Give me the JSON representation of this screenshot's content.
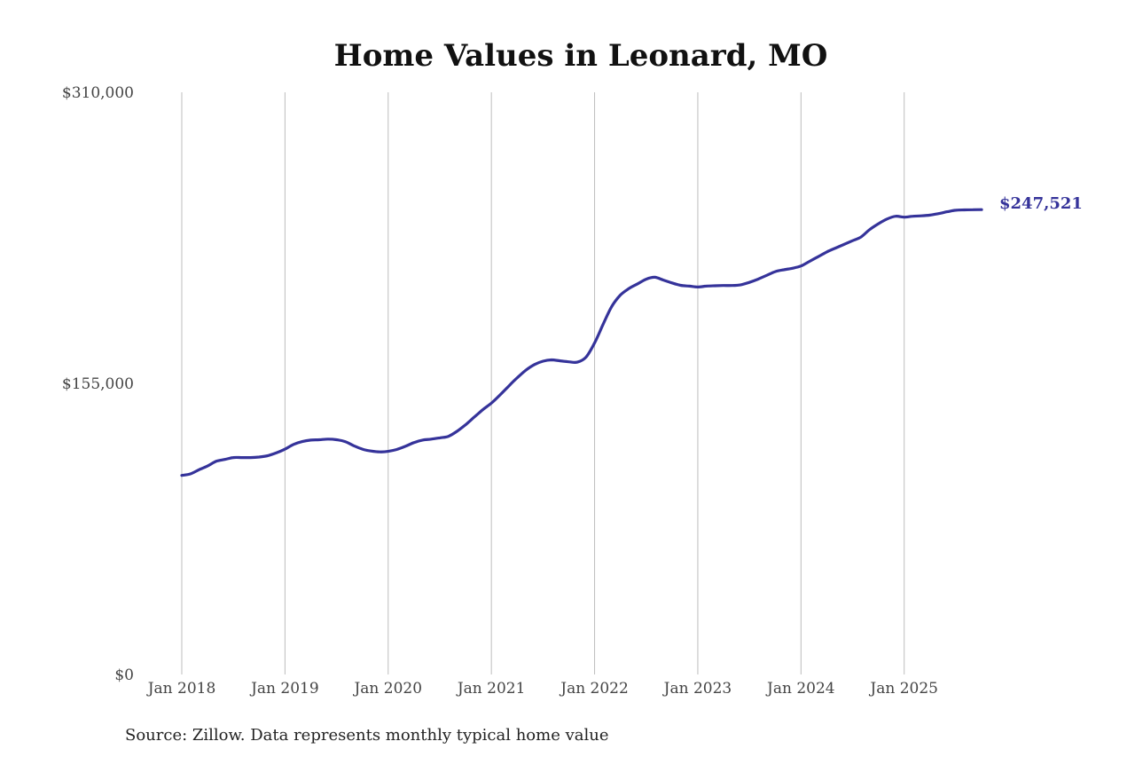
{
  "chart_data": {
    "type": "line",
    "title": "Home Values in Leonard, MO",
    "xlabel": "",
    "ylabel": "",
    "source": "Source: Zillow. Data represents monthly typical home value",
    "ylim": [
      0,
      310000
    ],
    "yticks": [
      0,
      155000,
      310000
    ],
    "ytick_labels": [
      "$0",
      "$155,000",
      "$310,000"
    ],
    "xlim": [
      2018.0,
      2025.75
    ],
    "xticks": [
      2018,
      2019,
      2020,
      2021,
      2022,
      2023,
      2024,
      2025
    ],
    "xtick_labels": [
      "Jan 2018",
      "Jan 2019",
      "Jan 2020",
      "Jan 2021",
      "Jan 2022",
      "Jan 2023",
      "Jan 2024",
      "Jan 2025"
    ],
    "grid": "vertical",
    "colors": {
      "line": "#35339a"
    },
    "end_label": "$247,521",
    "series": [
      {
        "x": [
          2018.0,
          2018.083,
          2018.167,
          2018.25,
          2018.333,
          2018.417,
          2018.5,
          2018.583,
          2018.667,
          2018.75,
          2018.833,
          2018.917,
          2019.0,
          2019.083,
          2019.167,
          2019.25,
          2019.333,
          2019.417,
          2019.5,
          2019.583,
          2019.667,
          2019.75,
          2019.833,
          2019.917,
          2020.0,
          2020.083,
          2020.167,
          2020.25,
          2020.333,
          2020.417,
          2020.5,
          2020.583,
          2020.667,
          2020.75,
          2020.833,
          2020.917,
          2021.0,
          2021.083,
          2021.167,
          2021.25,
          2021.333,
          2021.417,
          2021.5,
          2021.583,
          2021.667,
          2021.75,
          2021.833,
          2021.917,
          2022.0,
          2022.083,
          2022.167,
          2022.25,
          2022.333,
          2022.417,
          2022.5,
          2022.583,
          2022.667,
          2022.75,
          2022.833,
          2022.917,
          2023.0,
          2023.083,
          2023.167,
          2023.25,
          2023.333,
          2023.417,
          2023.5,
          2023.583,
          2023.667,
          2023.75,
          2023.833,
          2023.917,
          2024.0,
          2024.083,
          2024.167,
          2024.25,
          2024.333,
          2024.417,
          2024.5,
          2024.583,
          2024.667,
          2024.75,
          2024.833,
          2024.917,
          2025.0,
          2025.083,
          2025.167,
          2025.25,
          2025.333,
          2025.417,
          2025.5,
          2025.583,
          2025.667,
          2025.75
        ],
        "values": [
          106000,
          106800,
          109000,
          111000,
          113500,
          114500,
          115500,
          115500,
          115500,
          115800,
          116500,
          118000,
          120000,
          122500,
          124000,
          124800,
          125000,
          125300,
          125000,
          124000,
          121800,
          120000,
          119000,
          118500,
          118800,
          119800,
          121500,
          123500,
          124800,
          125300,
          126000,
          126800,
          129500,
          133000,
          137000,
          141000,
          144500,
          148800,
          153500,
          158000,
          162000,
          165000,
          166800,
          167500,
          167000,
          166500,
          166300,
          169000,
          176500,
          186500,
          196000,
          202000,
          205500,
          208000,
          210500,
          211500,
          210000,
          208500,
          207200,
          206800,
          206300,
          206800,
          207000,
          207100,
          207100,
          207500,
          208800,
          210500,
          212500,
          214500,
          215500,
          216300,
          217500,
          220000,
          222500,
          225000,
          227000,
          229000,
          231000,
          233000,
          237000,
          240000,
          242500,
          244000,
          243500,
          244000,
          244200,
          244600,
          245400,
          246400,
          247200,
          247400,
          247500,
          247521
        ]
      }
    ]
  }
}
